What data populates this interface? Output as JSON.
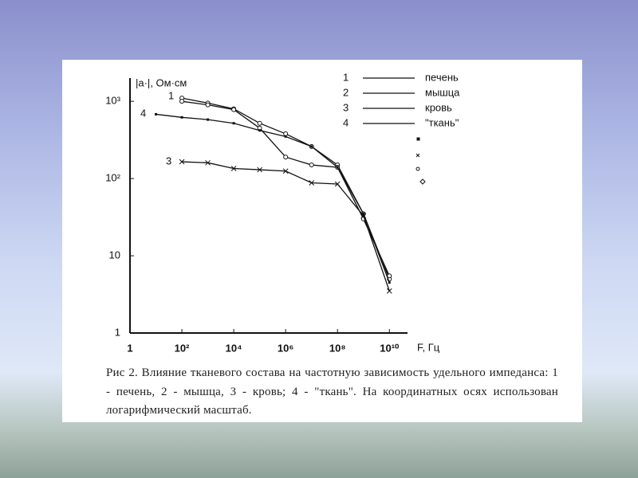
{
  "chart_data": {
    "type": "line",
    "ylabel": "|a·|, Ом·см",
    "xlabel": "F, Гц",
    "log_x": true,
    "log_y": true,
    "xlim": [
      1,
      50000000000
    ],
    "ylim": [
      1,
      2000
    ],
    "xticks": [
      1,
      {
        "value": 100,
        "label": "10²"
      },
      {
        "value": 10000,
        "label": "10⁴"
      },
      {
        "value": 1000000,
        "label": "10⁶"
      },
      {
        "value": 100000000,
        "label": "10⁸"
      },
      {
        "value": 10000000000,
        "label": "10¹⁰"
      }
    ],
    "yticks": [
      1,
      10,
      {
        "value": 100,
        "label": "10²"
      },
      {
        "value": 1000,
        "label": "10³"
      }
    ],
    "series": [
      {
        "number": "1",
        "name": "печень",
        "color": "#111111",
        "marker": "circle",
        "x": [
          100,
          1000,
          10000,
          100000,
          1000000,
          10000000,
          100000000,
          1000000000,
          10000000000
        ],
        "values": [
          1100,
          950,
          800,
          520,
          380,
          260,
          150,
          35,
          5
        ]
      },
      {
        "number": "2",
        "name": "мышца",
        "color": "#111111",
        "marker": "circle",
        "x": [
          100,
          1000,
          10000,
          100000,
          1000000,
          10000000,
          100000000,
          1000000000,
          10000000000
        ],
        "values": [
          1000,
          900,
          780,
          450,
          190,
          150,
          140,
          30,
          5.5
        ]
      },
      {
        "number": "3",
        "name": "кровь",
        "color": "#111111",
        "marker": "cross",
        "x": [
          100,
          1000,
          10000,
          100000,
          1000000,
          10000000,
          100000000,
          1000000000,
          10000000000
        ],
        "values": [
          165,
          160,
          135,
          130,
          125,
          88,
          85,
          33,
          3.5
        ]
      },
      {
        "number": "4",
        "name": "\"ткань\"",
        "color": "#111111",
        "marker": "square",
        "x": [
          10,
          100,
          1000,
          10000,
          100000,
          1000000,
          10000000,
          100000000,
          1000000000,
          10000000000
        ],
        "values": [
          680,
          620,
          580,
          520,
          420,
          350,
          260,
          140,
          35,
          4.5
        ]
      }
    ],
    "caption": "Рис 2. Влияние тканевого состава на частотную зависимость удельного импеданса: 1 - печень,  2 - мышца, 3 - кровь; 4 - \"ткань\". На координатных осях использован логарифмический масштаб."
  }
}
